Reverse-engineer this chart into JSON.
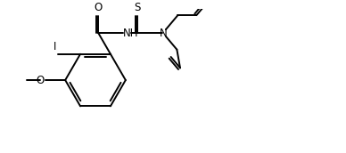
{
  "bg_color": "#ffffff",
  "line_color": "#000000",
  "line_width": 1.4,
  "font_size": 8.5,
  "figsize": [
    3.88,
    1.72
  ],
  "dpi": 100,
  "xlim": [
    0,
    11
  ],
  "ylim": [
    0,
    5
  ]
}
